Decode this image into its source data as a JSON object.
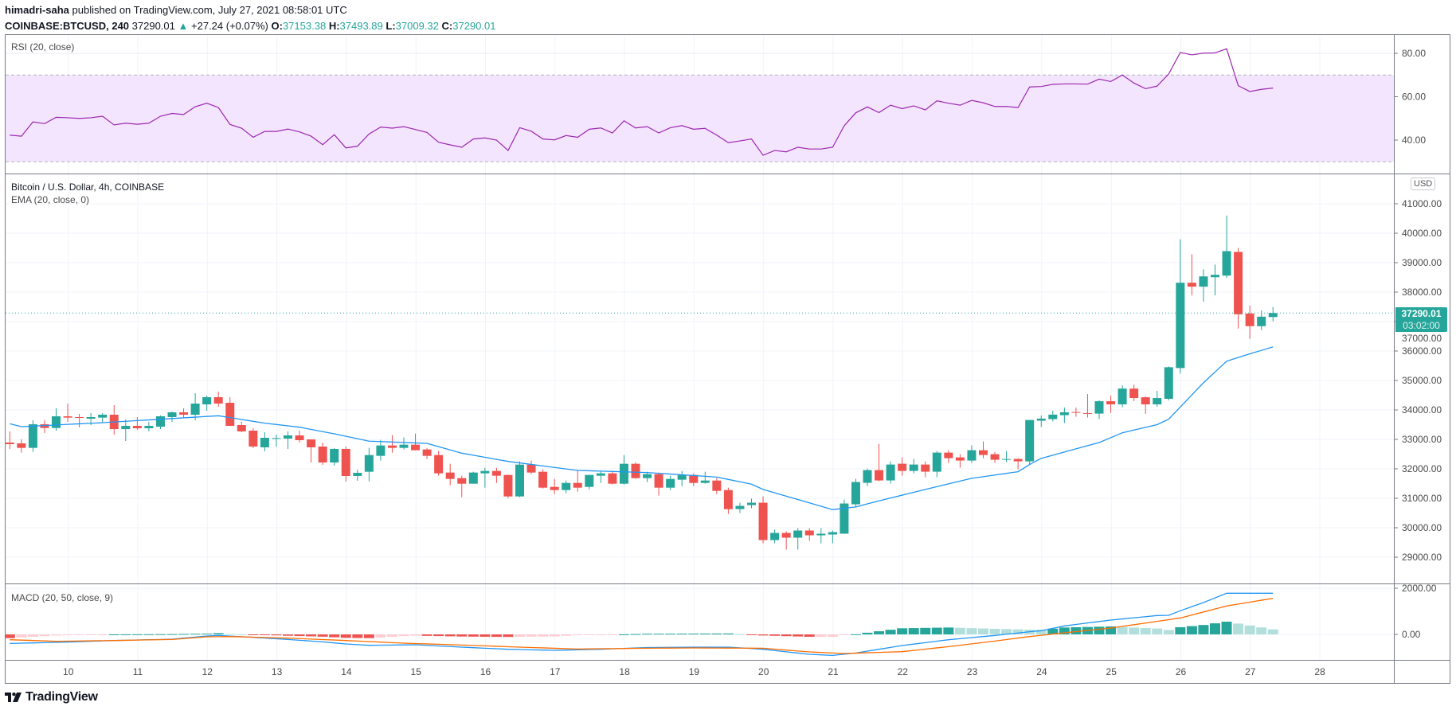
{
  "header": {
    "author": "himadri-saha",
    "published": "published on TradingView.com, July 27, 2021 08:58:01 UTC",
    "symbol": "COINBASE:BTCUSD, 240",
    "last": "37290.01",
    "change_icon": "triangle-up-icon",
    "change": "+27.24 (+0.07%)",
    "o_label": "O:",
    "o": "37153.38",
    "h_label": "H:",
    "h": "37493.89",
    "l_label": "L:",
    "l": "37009.32",
    "c_label": "C:",
    "c": "37290.01"
  },
  "panes": {
    "rsi_label": "RSI (20, close)",
    "main_title": "Bitcoin / U.S. Dollar, 4h, COINBASE",
    "ema_label": "EMA (20, close, 0)",
    "macd_label": "MACD (20, 50, close, 9)"
  },
  "price_axis": {
    "currency": "USD",
    "current_price": "37290.01",
    "countdown": "03:02:00"
  },
  "logo": {
    "text": "TradingView"
  },
  "colors": {
    "up": "#26a69a",
    "down": "#ef5350",
    "ema": "#2196f3",
    "rsi": "#9c27b0",
    "rsi_band": "#f3e5fd",
    "macd": "#2196f3",
    "signal": "#ff6d00",
    "hist_up_strong": "#26a69a",
    "hist_up_weak": "#b2dfdb",
    "hist_down_strong": "#ef5350",
    "hist_down_weak": "#ffcdd2",
    "grid": "#f0f3fa"
  },
  "chart_data": {
    "type": "candlestick",
    "interval": "240",
    "x_ticks": [
      "10",
      "11",
      "12",
      "13",
      "14",
      "15",
      "16",
      "17",
      "18",
      "19",
      "20",
      "21",
      "22",
      "23",
      "24",
      "25",
      "26",
      "27",
      "28"
    ],
    "price_ticks": [
      "41000.00",
      "40000.00",
      "39000.00",
      "38000.00",
      "37000.00",
      "36000.00",
      "35000.00",
      "34000.00",
      "33000.00",
      "32000.00",
      "31000.00",
      "30000.00",
      "29000.00"
    ],
    "rsi_ticks": [
      "80.00",
      "60.00",
      "40.00"
    ],
    "rsi_bands": [
      30,
      70
    ],
    "macd_ticks": [
      "2000.00",
      "0.00"
    ],
    "ohlc": [
      [
        32892,
        33270,
        32676,
        32838
      ],
      [
        32865,
        33000,
        32550,
        32712
      ],
      [
        32712,
        33649,
        32577,
        33513
      ],
      [
        33513,
        33649,
        33216,
        33387
      ],
      [
        33387,
        34054,
        33297,
        33784
      ],
      [
        33784,
        34216,
        33595,
        33739
      ],
      [
        33757,
        33865,
        33405,
        33730
      ],
      [
        33703,
        33892,
        33487,
        33757
      ],
      [
        33739,
        33892,
        33567,
        33838
      ],
      [
        33838,
        34162,
        33162,
        33351
      ],
      [
        33351,
        33676,
        32946,
        33459
      ],
      [
        33459,
        33757,
        33324,
        33378
      ],
      [
        33378,
        33595,
        33270,
        33459
      ],
      [
        33432,
        33811,
        33351,
        33784
      ],
      [
        33757,
        33946,
        33595,
        33919
      ],
      [
        33919,
        34054,
        33730,
        33838
      ],
      [
        33838,
        34568,
        33649,
        34216
      ],
      [
        34189,
        34486,
        33973,
        34432
      ],
      [
        34432,
        34622,
        34108,
        34216
      ],
      [
        34243,
        34432,
        33459,
        33459
      ],
      [
        33486,
        33595,
        33243,
        33270
      ],
      [
        33297,
        33378,
        32703,
        32757
      ],
      [
        32730,
        33243,
        32595,
        33054
      ],
      [
        33027,
        33162,
        32757,
        33045
      ],
      [
        33027,
        33270,
        32676,
        33135
      ],
      [
        33135,
        33297,
        32892,
        32973
      ],
      [
        32999,
        32999,
        32216,
        32730
      ],
      [
        32757,
        32892,
        32135,
        32216
      ],
      [
        32216,
        32703,
        32108,
        32676
      ],
      [
        32676,
        32757,
        31568,
        31757
      ],
      [
        31757,
        31973,
        31595,
        31865
      ],
      [
        31901,
        32712,
        31576,
        32468
      ],
      [
        32441,
        32982,
        32279,
        32793
      ],
      [
        32793,
        33144,
        32550,
        32712
      ],
      [
        32712,
        33063,
        32658,
        32820
      ],
      [
        32820,
        33198,
        32631,
        32631
      ],
      [
        32658,
        32712,
        32333,
        32441
      ],
      [
        32468,
        32604,
        31766,
        31847
      ],
      [
        31874,
        32171,
        31441,
        31658
      ],
      [
        31685,
        31766,
        31036,
        31495
      ],
      [
        31495,
        31901,
        31495,
        31874
      ],
      [
        31847,
        32036,
        31360,
        31928
      ],
      [
        31928,
        32036,
        31522,
        31766
      ],
      [
        31793,
        31793,
        31009,
        31063
      ],
      [
        31063,
        32252,
        31036,
        32144
      ],
      [
        32144,
        32279,
        31820,
        31874
      ],
      [
        31901,
        31982,
        31333,
        31360
      ],
      [
        31387,
        31658,
        31144,
        31279
      ],
      [
        31279,
        31603,
        31171,
        31522
      ],
      [
        31522,
        31955,
        31225,
        31360
      ],
      [
        31387,
        31793,
        31306,
        31793
      ],
      [
        31766,
        31928,
        31522,
        31847
      ],
      [
        31847,
        31928,
        31468,
        31495
      ],
      [
        31495,
        32468,
        31468,
        32171
      ],
      [
        32171,
        32225,
        31658,
        31685
      ],
      [
        31685,
        31901,
        31549,
        31820
      ],
      [
        31820,
        31874,
        31090,
        31360
      ],
      [
        31360,
        31766,
        31279,
        31658
      ],
      [
        31631,
        31928,
        31414,
        31793
      ],
      [
        31793,
        31847,
        31414,
        31522
      ],
      [
        31522,
        31901,
        31495,
        31603
      ],
      [
        31603,
        31685,
        31144,
        31252
      ],
      [
        31279,
        31360,
        30468,
        30631
      ],
      [
        30634,
        30850,
        30499,
        30742
      ],
      [
        30769,
        30985,
        30661,
        30850
      ],
      [
        30850,
        31066,
        29473,
        29581
      ],
      [
        29581,
        29932,
        29473,
        29824
      ],
      [
        29824,
        29878,
        29257,
        29662
      ],
      [
        29662,
        29986,
        29257,
        29905
      ],
      [
        29905,
        29986,
        29554,
        29743
      ],
      [
        29743,
        29986,
        29473,
        29797
      ],
      [
        29770,
        29905,
        29473,
        29851
      ],
      [
        29797,
        30958,
        29797,
        30823
      ],
      [
        30796,
        31660,
        30715,
        31552
      ],
      [
        31525,
        32011,
        31417,
        31957
      ],
      [
        31957,
        32848,
        31579,
        31606
      ],
      [
        31606,
        32254,
        31498,
        32146
      ],
      [
        32173,
        32389,
        31768,
        31930
      ],
      [
        31930,
        32335,
        31849,
        32146
      ],
      [
        32146,
        32254,
        31714,
        31903
      ],
      [
        31903,
        32605,
        31714,
        32551
      ],
      [
        32551,
        32632,
        32200,
        32362
      ],
      [
        32389,
        32497,
        32038,
        32281
      ],
      [
        32281,
        32794,
        32200,
        32632
      ],
      [
        32632,
        32929,
        32362,
        32470
      ],
      [
        32497,
        32578,
        32200,
        32308
      ],
      [
        32308,
        32605,
        32227,
        32335
      ],
      [
        32335,
        32362,
        31984,
        32254
      ],
      [
        32254,
        33658,
        32146,
        33658
      ],
      [
        33635,
        33813,
        33420,
        33706
      ],
      [
        33688,
        33974,
        33608,
        33840
      ],
      [
        33822,
        34082,
        33554,
        33921
      ],
      [
        33930,
        34082,
        33769,
        33903
      ],
      [
        33894,
        34538,
        33742,
        33876
      ],
      [
        33876,
        34323,
        33688,
        34296
      ],
      [
        34296,
        34484,
        33903,
        34189
      ],
      [
        34189,
        34833,
        34091,
        34725
      ],
      [
        34725,
        34860,
        34296,
        34404
      ],
      [
        34430,
        34457,
        33867,
        34189
      ],
      [
        34189,
        34645,
        34108,
        34404
      ],
      [
        34377,
        35477,
        34323,
        35450
      ],
      [
        35423,
        39794,
        35235,
        38319
      ],
      [
        38319,
        39285,
        37890,
        38185
      ],
      [
        38185,
        38775,
        37676,
        38534
      ],
      [
        38507,
        38936,
        37890,
        38587
      ],
      [
        38560,
        40599,
        38480,
        39392
      ],
      [
        39365,
        39499,
        36764,
        37247
      ],
      [
        37273,
        37541,
        36415,
        36844
      ],
      [
        36844,
        37380,
        36710,
        37166
      ],
      [
        37153.38,
        37493.89,
        37009.32,
        37290.01
      ]
    ],
    "ema": [
      33531,
      33432,
      null,
      null,
      null,
      null,
      null,
      null,
      33567,
      null,
      null,
      null,
      null,
      null,
      null,
      null,
      null,
      null,
      33802,
      null,
      null,
      null,
      33550,
      null,
      null,
      33414,
      null,
      null,
      33189,
      null,
      null,
      32940,
      null,
      null,
      null,
      null,
      32865,
      null,
      null,
      32532,
      null,
      null,
      null,
      32252,
      null,
      null,
      null,
      null,
      null,
      31946,
      null,
      null,
      null,
      null,
      null,
      31874,
      null,
      null,
      null,
      null,
      null,
      31720,
      null,
      null,
      31480,
      31300,
      null,
      null,
      null,
      null,
      null,
      30616,
      null,
      30706,
      null,
      30913,
      null,
      null,
      null,
      31300,
      null,
      null,
      null,
      31678,
      null,
      null,
      null,
      31903,
      32146,
      32356,
      null,
      null,
      null,
      null,
      32893,
      null,
      33224,
      null,
      null,
      33501,
      33688,
      null,
      null,
      34922,
      null,
      35655,
      null,
      35906,
      null,
      36138
    ],
    "rsi": [
      42.3,
      41.8,
      48.4,
      47.6,
      50.5,
      50.3,
      50.0,
      50.3,
      51.0,
      47.0,
      47.8,
      47.3,
      47.8,
      51.0,
      52.3,
      51.8,
      55.4,
      57.0,
      55.0,
      47.2,
      45.5,
      41.3,
      44.0,
      44.0,
      45.1,
      43.8,
      41.8,
      37.9,
      42.5,
      36.4,
      37.2,
      42.8,
      46.0,
      45.5,
      46.2,
      44.9,
      43.5,
      39.0,
      37.8,
      36.7,
      40.5,
      41.0,
      40.0,
      35.2,
      45.7,
      44.1,
      40.5,
      40.1,
      42.1,
      41.3,
      45.0,
      45.6,
      43.3,
      48.9,
      45.6,
      46.2,
      43.3,
      45.7,
      46.7,
      45.0,
      45.4,
      42.3,
      38.8,
      39.6,
      40.5,
      33.0,
      35.2,
      34.6,
      36.7,
      35.9,
      35.9,
      36.7,
      46.6,
      52.6,
      55.3,
      52.7,
      56.1,
      54.5,
      55.8,
      53.9,
      58.1,
      57.0,
      56.1,
      58.3,
      57.2,
      55.5,
      55.5,
      55.0,
      64.5,
      64.7,
      65.7,
      65.9,
      65.9,
      65.8,
      68.1,
      67.0,
      70.0,
      66.3,
      63.7,
      64.9,
      70.5,
      80.4,
      79.3,
      80.1,
      80.2,
      82.1,
      65.1,
      62.4,
      63.4,
      64.0
    ],
    "macd": [
      -391,
      null,
      null,
      null,
      -345,
      null,
      null,
      null,
      null,
      -265,
      null,
      null,
      null,
      null,
      -207,
      null,
      null,
      -69,
      -46,
      null,
      null,
      -127,
      null,
      null,
      -219,
      null,
      null,
      -322,
      null,
      -414,
      null,
      -472,
      null,
      null,
      null,
      -449,
      null,
      null,
      null,
      -552,
      null,
      null,
      null,
      -644,
      null,
      null,
      null,
      -690,
      null,
      null,
      null,
      -644,
      null,
      null,
      null,
      -570,
      null,
      null,
      null,
      -552,
      null,
      null,
      -552,
      null,
      null,
      -644,
      null,
      null,
      null,
      -863,
      null,
      -909,
      null,
      -805,
      null,
      null,
      null,
      -483,
      null,
      null,
      null,
      -230,
      null,
      null,
      null,
      -46,
      null,
      null,
      115,
      161,
      null,
      368,
      null,
      null,
      null,
      621,
      null,
      null,
      null,
      817,
      828,
      1024,
      null,
      1380,
      null,
      1783,
      null,
      null,
      null,
      1783
    ],
    "signal": [
      -230,
      null,
      null,
      null,
      -299,
      null,
      null,
      null,
      null,
      -265,
      null,
      null,
      null,
      null,
      -219,
      null,
      null,
      -104,
      null,
      -92,
      null,
      null,
      null,
      null,
      -161,
      null,
      null,
      null,
      null,
      -265,
      null,
      null,
      null,
      null,
      -380,
      null,
      null,
      null,
      null,
      -460,
      null,
      null,
      null,
      null,
      -552,
      null,
      null,
      null,
      null,
      -633,
      null,
      null,
      null,
      null,
      null,
      -598,
      null,
      null,
      null,
      -587,
      null,
      null,
      null,
      null,
      null,
      -598,
      null,
      null,
      null,
      -759,
      null,
      null,
      -828,
      null,
      null,
      null,
      null,
      -748,
      null,
      null,
      null,
      -529,
      null,
      null,
      null,
      -288,
      null,
      null,
      -92,
      null,
      null,
      69,
      null,
      null,
      null,
      276,
      null,
      null,
      null,
      564,
      null,
      713,
      null,
      null,
      null,
      1231,
      null,
      null,
      null,
      1564
    ]
  }
}
